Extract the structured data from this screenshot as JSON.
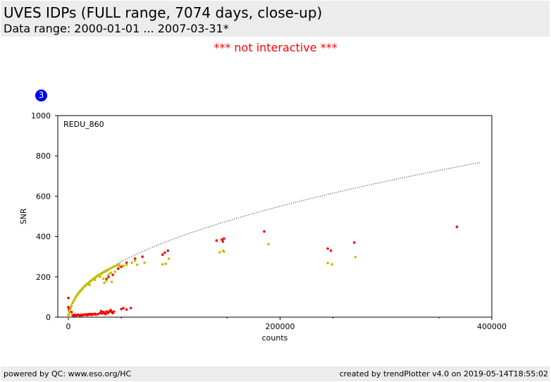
{
  "header": {
    "title": "UVES IDPs (FULL range, 7074 days, close-up)",
    "subtitle": "Data range: 2000-01-01 ... 2007-03-31*"
  },
  "notice": "*** not interactive ***",
  "badge": "3",
  "footer": {
    "left": "powered by QC: www.eso.org/HC",
    "right": "created by trendPlotter v4.0 on 2019-05-14T18:55:02"
  },
  "chart_data": {
    "type": "scatter",
    "annotation": "REDU_860",
    "xlabel": "counts",
    "ylabel": "SNR",
    "xlim": [
      -10000,
      400000
    ],
    "ylim": [
      0,
      1000
    ],
    "x_ticks": [
      {
        "value": 0,
        "label": "0"
      },
      {
        "value": 200000,
        "label": "200000"
      },
      {
        "value": 400000,
        "label": "400000"
      }
    ],
    "y_ticks": [
      {
        "value": 0,
        "label": "0"
      },
      {
        "value": 200,
        "label": "200"
      },
      {
        "value": 400,
        "label": "400"
      },
      {
        "value": 600,
        "label": "600"
      },
      {
        "value": 800,
        "label": "800"
      },
      {
        "value": 1000,
        "label": "1000"
      }
    ],
    "grid": false,
    "colors": {
      "red": "#ff0000",
      "olive": "#bfbf00",
      "curve": "#000000"
    },
    "series": [
      {
        "color": "red",
        "points": [
          [
            0,
            95
          ],
          [
            0,
            50
          ],
          [
            500,
            40
          ],
          [
            1000,
            30
          ],
          [
            2000,
            45
          ],
          [
            3000,
            25
          ],
          [
            4000,
            10
          ],
          [
            5000,
            8
          ],
          [
            6000,
            12
          ],
          [
            7000,
            8
          ],
          [
            8000,
            10
          ],
          [
            9000,
            12
          ],
          [
            10000,
            10
          ],
          [
            11000,
            8
          ],
          [
            12000,
            12
          ],
          [
            13000,
            9
          ],
          [
            14000,
            11
          ],
          [
            15000,
            13
          ],
          [
            16000,
            12
          ],
          [
            17000,
            14
          ],
          [
            18000,
            10
          ],
          [
            19000,
            15
          ],
          [
            20000,
            13
          ],
          [
            21000,
            16
          ],
          [
            22000,
            12
          ],
          [
            23000,
            15
          ],
          [
            24000,
            14
          ],
          [
            25000,
            17
          ],
          [
            26000,
            13
          ],
          [
            28000,
            15
          ],
          [
            30000,
            20
          ],
          [
            31000,
            30
          ],
          [
            32000,
            18
          ],
          [
            33000,
            25
          ],
          [
            34000,
            22
          ],
          [
            35000,
            15
          ],
          [
            36000,
            28
          ],
          [
            37000,
            20
          ],
          [
            38000,
            24
          ],
          [
            39000,
            30
          ],
          [
            40000,
            35
          ],
          [
            41000,
            25
          ],
          [
            42000,
            20
          ],
          [
            43000,
            28
          ],
          [
            50000,
            40
          ],
          [
            52000,
            45
          ],
          [
            55000,
            38
          ],
          [
            59000,
            45
          ],
          [
            36000,
            190
          ],
          [
            38000,
            200
          ],
          [
            42000,
            210
          ],
          [
            47000,
            240
          ],
          [
            50000,
            250
          ],
          [
            55000,
            270
          ],
          [
            63000,
            290
          ],
          [
            70000,
            300
          ],
          [
            89000,
            310
          ],
          [
            91000,
            320
          ],
          [
            94000,
            330
          ],
          [
            140000,
            380
          ],
          [
            145000,
            385
          ],
          [
            146000,
            375
          ],
          [
            147000,
            390
          ],
          [
            185000,
            425
          ],
          [
            245000,
            340
          ],
          [
            248000,
            330
          ],
          [
            270000,
            370
          ],
          [
            367000,
            448
          ]
        ]
      },
      {
        "color": "olive",
        "points": [
          [
            0,
            5
          ],
          [
            500,
            15
          ],
          [
            1000,
            25
          ],
          [
            1500,
            35
          ],
          [
            2000,
            45
          ],
          [
            3000,
            55
          ],
          [
            4000,
            70
          ],
          [
            5000,
            80
          ],
          [
            6000,
            90
          ],
          [
            7000,
            100
          ],
          [
            8000,
            108
          ],
          [
            9000,
            115
          ],
          [
            10000,
            122
          ],
          [
            11000,
            128
          ],
          [
            12000,
            134
          ],
          [
            13000,
            140
          ],
          [
            14000,
            146
          ],
          [
            15000,
            151
          ],
          [
            16000,
            156
          ],
          [
            17000,
            161
          ],
          [
            18000,
            166
          ],
          [
            19000,
            170
          ],
          [
            20000,
            175
          ],
          [
            21000,
            179
          ],
          [
            22000,
            183
          ],
          [
            23000,
            187
          ],
          [
            24000,
            191
          ],
          [
            25000,
            195
          ],
          [
            26000,
            199
          ],
          [
            27000,
            203
          ],
          [
            28000,
            206
          ],
          [
            29000,
            209
          ],
          [
            30000,
            213
          ],
          [
            31000,
            216
          ],
          [
            32000,
            219
          ],
          [
            33000,
            222
          ],
          [
            34000,
            225
          ],
          [
            35000,
            228
          ],
          [
            36000,
            231
          ],
          [
            37000,
            234
          ],
          [
            38000,
            237
          ],
          [
            40000,
            243
          ],
          [
            42000,
            248
          ],
          [
            44000,
            253
          ],
          [
            46000,
            258
          ],
          [
            48000,
            262
          ],
          [
            20000,
            160
          ],
          [
            25000,
            185
          ],
          [
            30000,
            200
          ],
          [
            33000,
            190
          ],
          [
            34000,
            170
          ],
          [
            36000,
            180
          ],
          [
            38000,
            210
          ],
          [
            40000,
            220
          ],
          [
            41000,
            175
          ],
          [
            44000,
            225
          ],
          [
            48000,
            250
          ],
          [
            52000,
            255
          ],
          [
            55000,
            260
          ],
          [
            60000,
            270
          ],
          [
            63000,
            280
          ],
          [
            65000,
            260
          ],
          [
            72000,
            270
          ],
          [
            89000,
            262
          ],
          [
            92000,
            265
          ],
          [
            95000,
            290
          ],
          [
            143000,
            322
          ],
          [
            146000,
            330
          ],
          [
            147000,
            325
          ],
          [
            189000,
            362
          ],
          [
            245000,
            268
          ],
          [
            249000,
            262
          ],
          [
            271000,
            298
          ]
        ]
      }
    ],
    "reference_curve": {
      "type": "sqrt",
      "coefficient": 1.23,
      "x_range": [
        0,
        390000
      ]
    }
  }
}
